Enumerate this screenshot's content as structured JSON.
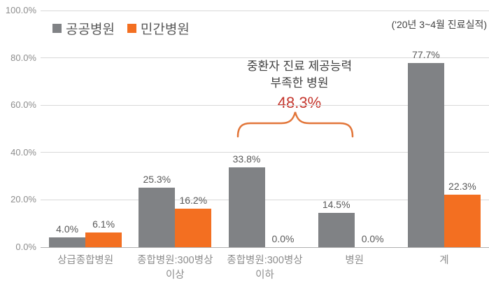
{
  "note": "('20년 3~4월 진료실적)",
  "annotation": {
    "line1": "중환자 진료 제공능력",
    "line2": "부족한 병원",
    "value": "48.3%",
    "value_color": "#c4342b",
    "brace_color": "#e2763a"
  },
  "chart_data": {
    "type": "bar",
    "title": "",
    "categories": [
      "상급종합병원",
      "종합병원:300병상 이상",
      "종합병원:300병상 이하",
      "병원",
      "계"
    ],
    "category_lines": [
      [
        "상급종합병원"
      ],
      [
        "종합병원:300병상",
        "이상"
      ],
      [
        "종합병원:300병상",
        "이하"
      ],
      [
        "병원"
      ],
      [
        "계"
      ]
    ],
    "series": [
      {
        "name": "공공병원",
        "color": "#808285",
        "values": [
          4.0,
          25.3,
          33.8,
          14.5,
          77.7
        ]
      },
      {
        "name": "민간병원",
        "color": "#f36f21",
        "values": [
          6.1,
          16.2,
          0.0,
          0.0,
          22.3
        ]
      }
    ],
    "value_labels": [
      [
        "4.0%",
        "6.1%"
      ],
      [
        "25.3%",
        "16.2%"
      ],
      [
        "33.8%",
        "0.0%"
      ],
      [
        "14.5%",
        "0.0%"
      ],
      [
        "77.7%",
        "22.3%"
      ]
    ],
    "xlabel": "",
    "ylabel": "",
    "ylim": [
      0,
      100
    ],
    "yticks": [
      "100.0%",
      "80.0%",
      "60.0%",
      "40.0%",
      "20.0%",
      "0.0%"
    ],
    "grid": true,
    "legend_position": "top-left",
    "colors": {
      "grid": "#d8d8d8",
      "baseline": "#b0b0b0",
      "axis_text": "#8d8d8d",
      "data_label": "#595959"
    }
  }
}
